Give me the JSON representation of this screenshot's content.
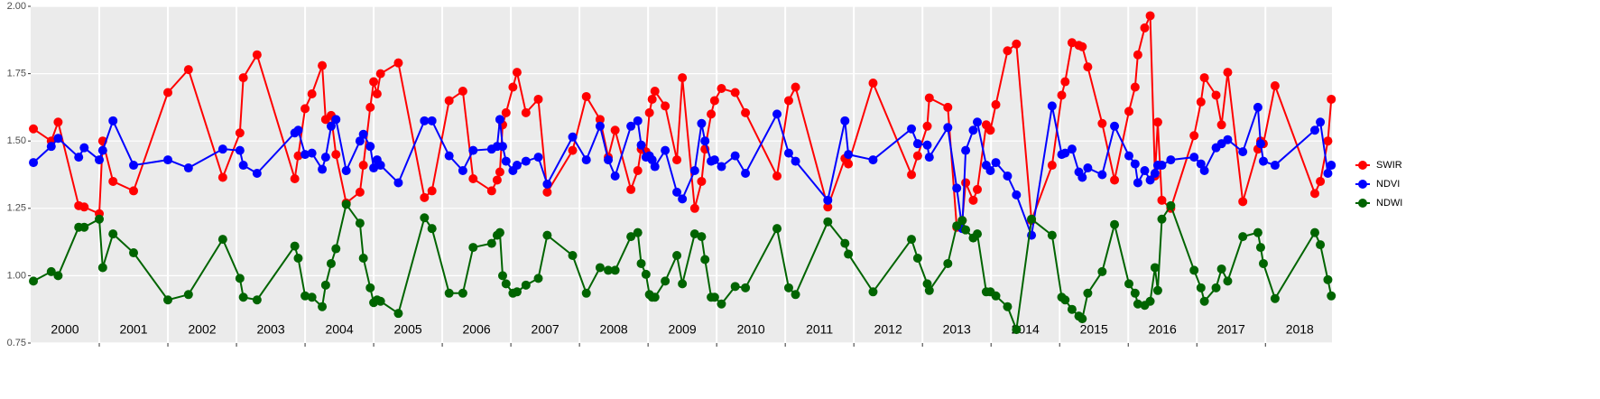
{
  "chart_data": {
    "type": "line",
    "xlim": [
      2000,
      2018.97
    ],
    "xticks": [
      2001,
      2002,
      2003,
      2004,
      2005,
      2006,
      2007,
      2008,
      2009,
      2010,
      2011,
      2012,
      2013,
      2014,
      2015,
      2016,
      2017,
      2018
    ],
    "year_labels": [
      "2000",
      "2001",
      "2002",
      "2003",
      "2004",
      "2005",
      "2006",
      "2007",
      "2008",
      "2009",
      "2010",
      "2011",
      "2012",
      "2013",
      "2014",
      "2015",
      "2016",
      "2017",
      "2018"
    ],
    "ylim": [
      0.75,
      2.0
    ],
    "yticks": [
      0.75,
      {
        "value": 1,
        "label": "1.00"
      },
      1.25,
      {
        "value": 1.5,
        "label": "1.50"
      },
      1.75,
      {
        "value": 2,
        "label": "2.00"
      }
    ],
    "grid": true,
    "legend": "right",
    "x": [
      2000.04,
      2000.3,
      2000.4,
      2000.7,
      2000.78,
      2001.0,
      2001.05,
      2001.2,
      2001.5,
      2002.0,
      2002.3,
      2002.8,
      2003.05,
      2003.1,
      2003.3,
      2003.85,
      2003.9,
      2004.0,
      2004.1,
      2004.25,
      2004.3,
      2004.38,
      2004.45,
      2004.6,
      2004.8,
      2004.85,
      2004.95,
      2005.0,
      2005.05,
      2005.1,
      2005.36,
      2005.74,
      2005.85,
      2006.1,
      2006.3,
      2006.45,
      2006.72,
      2006.8,
      2006.84,
      2006.88,
      2006.93,
      2007.03,
      2007.09,
      2007.22,
      2007.4,
      2007.53,
      2007.9,
      2008.1,
      2008.3,
      2008.42,
      2008.52,
      2008.75,
      2008.85,
      2008.9,
      2008.97,
      2009.02,
      2009.06,
      2009.1,
      2009.25,
      2009.42,
      2009.5,
      2009.68,
      2009.78,
      2009.83,
      2009.92,
      2009.97,
      2010.07,
      2010.27,
      2010.42,
      2010.88,
      2011.05,
      2011.15,
      2011.62,
      2011.87,
      2011.92,
      2012.28,
      2012.84,
      2012.93,
      2013.07,
      2013.1,
      2013.37,
      2013.5,
      2013.58,
      2013.63,
      2013.74,
      2013.8,
      2013.93,
      2013.99,
      2014.07,
      2014.24,
      2014.37,
      2014.59,
      2014.89,
      2015.03,
      2015.08,
      2015.18,
      2015.28,
      2015.33,
      2015.41,
      2015.62,
      2015.8,
      2016.01,
      2016.1,
      2016.14,
      2016.24,
      2016.32,
      2016.39,
      2016.43,
      2016.49,
      2016.62,
      2016.96,
      2017.06,
      2017.11,
      2017.28,
      2017.36,
      2017.45,
      2017.67,
      2017.89,
      2017.93,
      2017.97,
      2018.14,
      2018.72,
      2018.8,
      2018.91,
      2018.96
    ],
    "series": [
      {
        "name": "SWIR",
        "color": "#ff0000",
        "values": [
          1.545,
          1.5,
          1.57,
          1.26,
          1.255,
          1.23,
          1.5,
          1.35,
          1.315,
          1.68,
          1.765,
          1.365,
          1.53,
          1.735,
          1.82,
          1.36,
          1.445,
          1.62,
          1.675,
          1.78,
          1.58,
          1.595,
          1.45,
          1.27,
          1.31,
          1.41,
          1.625,
          1.72,
          1.675,
          1.75,
          1.79,
          1.29,
          1.315,
          1.65,
          1.685,
          1.36,
          1.315,
          1.355,
          1.385,
          1.56,
          1.605,
          1.7,
          1.755,
          1.605,
          1.655,
          1.31,
          1.465,
          1.665,
          1.58,
          1.44,
          1.54,
          1.32,
          1.39,
          1.47,
          1.46,
          1.605,
          1.655,
          1.685,
          1.63,
          1.43,
          1.735,
          1.25,
          1.35,
          1.47,
          1.6,
          1.65,
          1.695,
          1.68,
          1.605,
          1.37,
          1.65,
          1.7,
          1.255,
          1.435,
          1.415,
          1.715,
          1.375,
          1.445,
          1.555,
          1.66,
          1.625,
          1.18,
          1.205,
          1.345,
          1.28,
          1.32,
          1.56,
          1.54,
          1.635,
          1.835,
          1.86,
          1.205,
          1.41,
          1.67,
          1.72,
          1.865,
          1.855,
          1.85,
          1.775,
          1.565,
          1.355,
          1.61,
          1.7,
          1.82,
          1.92,
          1.965,
          1.37,
          1.57,
          1.28,
          1.25,
          1.52,
          1.645,
          1.735,
          1.67,
          1.56,
          1.755,
          1.275,
          1.47,
          1.5,
          1.49,
          1.705,
          1.305,
          1.35,
          1.5,
          1.655
        ]
      },
      {
        "name": "NDVI",
        "color": "#0000ff",
        "values": [
          1.42,
          1.48,
          1.51,
          1.44,
          1.475,
          1.43,
          1.465,
          1.575,
          1.41,
          1.43,
          1.4,
          1.47,
          1.465,
          1.41,
          1.38,
          1.53,
          1.54,
          1.45,
          1.455,
          1.395,
          1.44,
          1.555,
          1.58,
          1.39,
          1.5,
          1.525,
          1.48,
          1.4,
          1.43,
          1.41,
          1.345,
          1.575,
          1.575,
          1.445,
          1.39,
          1.465,
          1.47,
          1.48,
          1.58,
          1.48,
          1.425,
          1.39,
          1.41,
          1.425,
          1.44,
          1.34,
          1.515,
          1.43,
          1.555,
          1.43,
          1.37,
          1.555,
          1.575,
          1.485,
          1.44,
          1.445,
          1.43,
          1.405,
          1.465,
          1.31,
          1.285,
          1.39,
          1.565,
          1.5,
          1.425,
          1.43,
          1.405,
          1.445,
          1.38,
          1.6,
          1.455,
          1.425,
          1.28,
          1.575,
          1.45,
          1.43,
          1.545,
          1.49,
          1.485,
          1.44,
          1.55,
          1.325,
          1.175,
          1.465,
          1.54,
          1.57,
          1.41,
          1.39,
          1.42,
          1.37,
          1.3,
          1.15,
          1.63,
          1.45,
          1.455,
          1.47,
          1.385,
          1.365,
          1.4,
          1.375,
          1.555,
          1.445,
          1.415,
          1.345,
          1.39,
          1.355,
          1.38,
          1.41,
          1.41,
          1.43,
          1.44,
          1.415,
          1.39,
          1.475,
          1.49,
          1.505,
          1.46,
          1.625,
          1.49,
          1.425,
          1.41,
          1.54,
          1.57,
          1.38,
          1.41
        ]
      },
      {
        "name": "NDWI",
        "color": "#006400",
        "values": [
          0.98,
          1.015,
          1.0,
          1.18,
          1.18,
          1.21,
          1.03,
          1.155,
          1.085,
          0.91,
          0.93,
          1.135,
          0.99,
          0.92,
          0.91,
          1.11,
          1.065,
          0.925,
          0.92,
          0.885,
          0.965,
          1.045,
          1.1,
          1.265,
          1.195,
          1.065,
          0.955,
          0.9,
          0.91,
          0.905,
          0.86,
          1.215,
          1.175,
          0.935,
          0.935,
          1.105,
          1.12,
          1.15,
          1.16,
          1.0,
          0.97,
          0.935,
          0.94,
          0.965,
          0.99,
          1.15,
          1.075,
          0.935,
          1.03,
          1.02,
          1.02,
          1.145,
          1.16,
          1.045,
          1.005,
          0.93,
          0.92,
          0.92,
          0.98,
          1.075,
          0.97,
          1.155,
          1.145,
          1.06,
          0.92,
          0.92,
          0.895,
          0.96,
          0.955,
          1.175,
          0.955,
          0.93,
          1.2,
          1.12,
          1.08,
          0.94,
          1.135,
          1.065,
          0.97,
          0.945,
          1.045,
          1.185,
          1.205,
          1.17,
          1.14,
          1.155,
          0.94,
          0.94,
          0.925,
          0.885,
          0.8,
          1.21,
          1.15,
          0.92,
          0.91,
          0.875,
          0.85,
          0.84,
          0.935,
          1.015,
          1.19,
          0.97,
          0.935,
          0.895,
          0.89,
          0.905,
          1.03,
          0.945,
          1.21,
          1.26,
          1.02,
          0.955,
          0.905,
          0.955,
          1.025,
          0.98,
          1.145,
          1.16,
          1.105,
          1.045,
          0.915,
          1.16,
          1.115,
          0.985,
          0.925
        ]
      }
    ]
  }
}
